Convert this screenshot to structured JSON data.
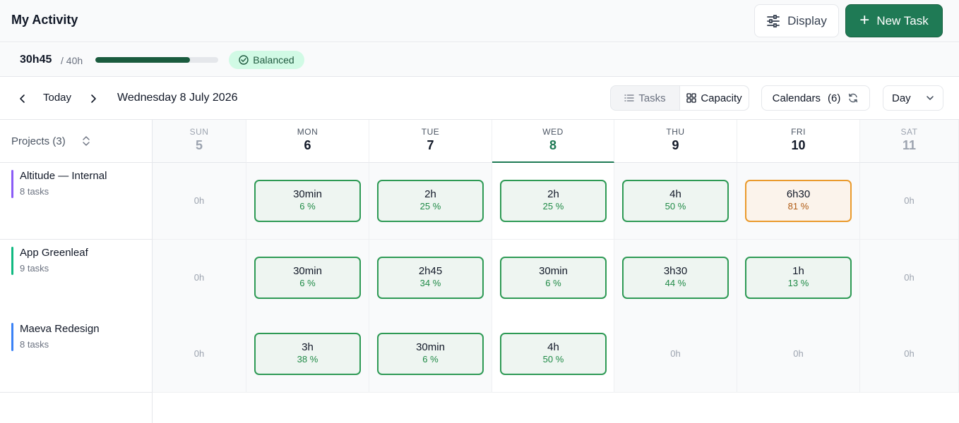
{
  "header": {
    "title": "My Activity",
    "display_label": "Display",
    "new_task_label": "New Task",
    "new_task_icon": "plus-icon",
    "display_icon": "sliders-icon"
  },
  "summary": {
    "hours_used": "30h45",
    "hours_total": "/ 40h",
    "progress_fraction": 0.77,
    "status_label": "Balanced",
    "status_icon": "check-circle-icon"
  },
  "toolbar": {
    "today_label": "Today",
    "date_label": "Wednesday 8 July 2026",
    "tab_tasks": "Tasks",
    "tab_capacity": "Capacity",
    "active_tab": "Capacity",
    "calendars_label": "Calendars",
    "calendars_count": "(6)",
    "view_value": "Day"
  },
  "grid": {
    "projects_label": "Projects (3)",
    "days": [
      {
        "name": "SUN",
        "num": "5",
        "weekend": true
      },
      {
        "name": "MON",
        "num": "6"
      },
      {
        "name": "TUE",
        "num": "7"
      },
      {
        "name": "WED",
        "num": "8",
        "active": true
      },
      {
        "name": "THU",
        "num": "9"
      },
      {
        "name": "FRI",
        "num": "10"
      },
      {
        "name": "SAT",
        "num": "11",
        "weekend": true
      }
    ],
    "projects": [
      {
        "name": "Altitude — Internal",
        "tasks": "8 tasks",
        "color": "#8b5cf6",
        "cells": [
          {
            "empty": "0h"
          },
          {
            "hours": "30min",
            "pct": "6 %"
          },
          {
            "hours": "2h",
            "pct": "25 %"
          },
          {
            "hours": "2h",
            "pct": "25 %"
          },
          {
            "hours": "4h",
            "pct": "50 %"
          },
          {
            "hours": "6h30",
            "pct": "81 %",
            "warn": true
          },
          {
            "empty": "0h"
          }
        ]
      },
      {
        "name": "App Greenleaf",
        "tasks": "9 tasks",
        "color": "#10b981",
        "cells": [
          {
            "empty": "0h"
          },
          {
            "hours": "30min",
            "pct": "6 %"
          },
          {
            "hours": "2h45",
            "pct": "34 %"
          },
          {
            "hours": "30min",
            "pct": "6 %"
          },
          {
            "hours": "3h30",
            "pct": "44 %"
          },
          {
            "hours": "1h",
            "pct": "13 %"
          },
          {
            "empty": "0h"
          }
        ]
      },
      {
        "name": "Maeva Redesign",
        "tasks": "8 tasks",
        "color": "#3b82f6",
        "cells": [
          {
            "empty": "0h"
          },
          {
            "hours": "3h",
            "pct": "38 %"
          },
          {
            "hours": "30min",
            "pct": "6 %"
          },
          {
            "hours": "4h",
            "pct": "50 %"
          },
          {
            "empty": "0h"
          },
          {
            "empty": "0h"
          },
          {
            "empty": "0h"
          }
        ]
      }
    ]
  }
}
